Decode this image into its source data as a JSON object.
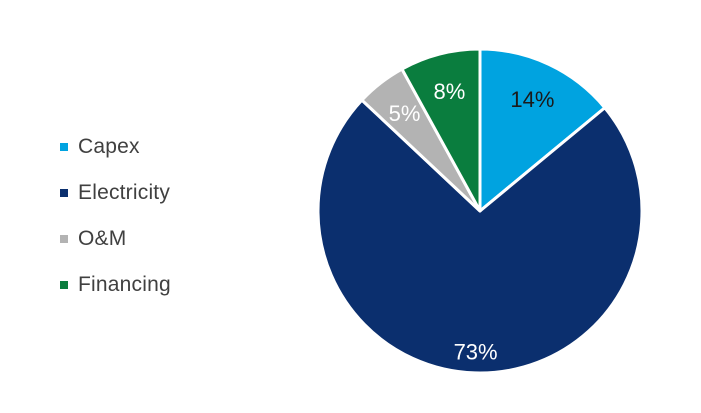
{
  "chart_data": {
    "type": "pie",
    "title": "",
    "categories": [
      "Capex",
      "Electricity",
      "O&M",
      "Financing"
    ],
    "values": [
      14,
      73,
      5,
      8
    ],
    "labels": [
      "14%",
      "73%",
      "5%",
      "8%"
    ],
    "colors": [
      "#00A3E0",
      "#0B2F6E",
      "#B3B3B3",
      "#0A7D3E"
    ],
    "label_colors": [
      "#1a1a1a",
      "#ffffff",
      "#ffffff",
      "#ffffff"
    ],
    "start_angle_deg": 0,
    "direction": "clockwise",
    "legend_placement": "left"
  }
}
